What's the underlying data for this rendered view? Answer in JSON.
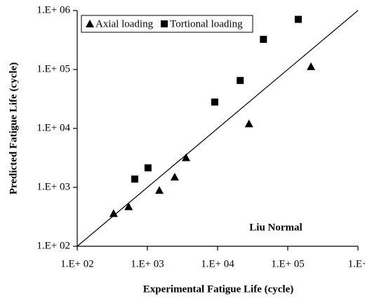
{
  "chart_data": {
    "type": "scatter",
    "x_label": "Experimental Fatigue Life (cycle)",
    "y_label": "Predicted Fatigue Life (cycle)",
    "annotation": "Liu Normal",
    "log_x": true,
    "log_y": true,
    "xlim": [
      100,
      1000000
    ],
    "ylim": [
      100,
      1000000
    ],
    "xticks": [
      {
        "value": 100,
        "label": "1.E+ 02"
      },
      {
        "value": 1000,
        "label": "1.E+ 03"
      },
      {
        "value": 10000,
        "label": "1.E+ 04"
      },
      {
        "value": 100000,
        "label": "1.E+ 05"
      },
      {
        "value": 1000000,
        "label": "1.E+"
      }
    ],
    "yticks": [
      {
        "value": 100,
        "label": "1.E+ 02"
      },
      {
        "value": 1000,
        "label": "1.E+ 03"
      },
      {
        "value": 10000,
        "label": "1.E+ 04"
      },
      {
        "value": 100000,
        "label": "1.E+ 05"
      },
      {
        "value": 1000000,
        "label": "1.E+ 06"
      }
    ],
    "legend": "top-left",
    "series": [
      {
        "name": "Axial loading",
        "color": "#000000",
        "marker": "triangle",
        "x": [
          330,
          540,
          1480,
          2450,
          3550,
          28000,
          214000
        ],
        "values": [
          360,
          470,
          890,
          1500,
          3200,
          12000,
          112000
        ]
      },
      {
        "name": "Tortional loading",
        "color": "#000000",
        "marker": "square",
        "x": [
          660,
          1020,
          9100,
          21000,
          45000,
          141000
        ],
        "values": [
          1380,
          2140,
          28000,
          65000,
          324000,
          708000
        ]
      }
    ]
  }
}
